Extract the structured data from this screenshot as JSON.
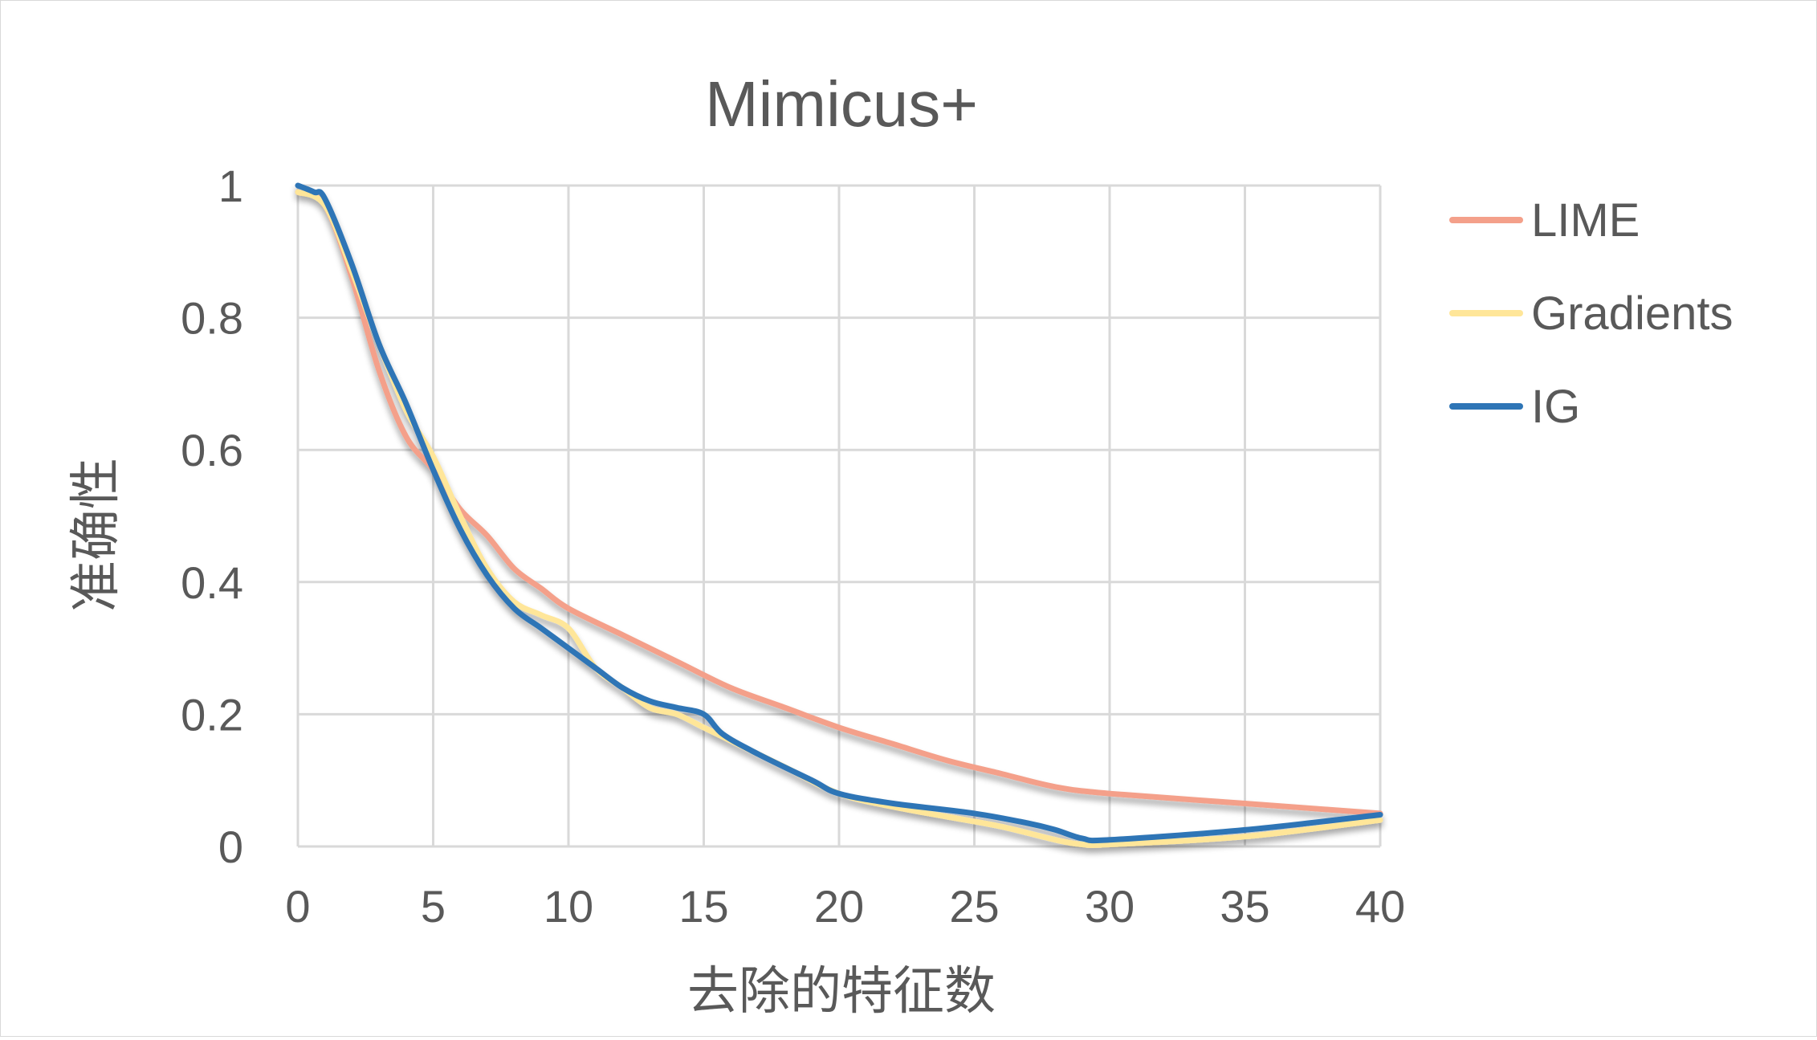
{
  "chart_data": {
    "type": "line",
    "title": "Mimicus+",
    "xlabel": "去除的特征数",
    "ylabel": "准确性",
    "xlim": [
      0,
      40
    ],
    "ylim": [
      0,
      1
    ],
    "x_ticks": [
      "0",
      "5",
      "10",
      "15",
      "20",
      "25",
      "30",
      "35",
      "40"
    ],
    "y_ticks": [
      "0",
      "0.2",
      "0.4",
      "0.6",
      "0.8",
      "1"
    ],
    "grid": true,
    "legend_position": "right",
    "series": [
      {
        "name": "LIME",
        "color": "#F4A08A",
        "points": [
          [
            0,
            0.99
          ],
          [
            1,
            0.97
          ],
          [
            2,
            0.86
          ],
          [
            3,
            0.72
          ],
          [
            4,
            0.62
          ],
          [
            5,
            0.57
          ],
          [
            6,
            0.51
          ],
          [
            7,
            0.47
          ],
          [
            8,
            0.42
          ],
          [
            9,
            0.39
          ],
          [
            10,
            0.36
          ],
          [
            12,
            0.32
          ],
          [
            14,
            0.28
          ],
          [
            16,
            0.24
          ],
          [
            18,
            0.21
          ],
          [
            20,
            0.18
          ],
          [
            22,
            0.155
          ],
          [
            24,
            0.13
          ],
          [
            26,
            0.11
          ],
          [
            28,
            0.09
          ],
          [
            30,
            0.08
          ],
          [
            35,
            0.065
          ],
          [
            40,
            0.05
          ]
        ]
      },
      {
        "name": "Gradients",
        "color": "#FFE699",
        "points": [
          [
            0,
            0.99
          ],
          [
            1,
            0.97
          ],
          [
            2,
            0.87
          ],
          [
            3,
            0.76
          ],
          [
            4,
            0.66
          ],
          [
            5,
            0.59
          ],
          [
            6,
            0.5
          ],
          [
            7,
            0.42
          ],
          [
            8,
            0.37
          ],
          [
            9,
            0.35
          ],
          [
            10,
            0.33
          ],
          [
            11,
            0.27
          ],
          [
            12,
            0.24
          ],
          [
            13,
            0.21
          ],
          [
            14,
            0.2
          ],
          [
            15,
            0.18
          ],
          [
            16,
            0.16
          ],
          [
            18,
            0.12
          ],
          [
            20,
            0.08
          ],
          [
            22,
            0.06
          ],
          [
            24,
            0.045
          ],
          [
            26,
            0.03
          ],
          [
            28,
            0.01
          ],
          [
            29,
            0.003
          ],
          [
            30,
            0.003
          ],
          [
            35,
            0.015
          ],
          [
            40,
            0.04
          ]
        ]
      },
      {
        "name": "IG",
        "color": "#2E75B6",
        "points": [
          [
            0,
            1.0
          ],
          [
            0.6,
            0.99
          ],
          [
            1,
            0.98
          ],
          [
            2,
            0.88
          ],
          [
            3,
            0.76
          ],
          [
            4,
            0.67
          ],
          [
            5,
            0.57
          ],
          [
            6,
            0.48
          ],
          [
            7,
            0.41
          ],
          [
            8,
            0.36
          ],
          [
            9,
            0.33
          ],
          [
            10,
            0.3
          ],
          [
            11,
            0.27
          ],
          [
            12,
            0.24
          ],
          [
            13,
            0.22
          ],
          [
            14,
            0.21
          ],
          [
            15,
            0.2
          ],
          [
            15.7,
            0.17
          ],
          [
            17,
            0.14
          ],
          [
            19,
            0.1
          ],
          [
            20,
            0.08
          ],
          [
            22,
            0.065
          ],
          [
            25,
            0.05
          ],
          [
            27,
            0.035
          ],
          [
            28,
            0.025
          ],
          [
            29,
            0.012
          ],
          [
            30,
            0.01
          ],
          [
            35,
            0.025
          ],
          [
            40,
            0.048
          ]
        ]
      }
    ]
  }
}
